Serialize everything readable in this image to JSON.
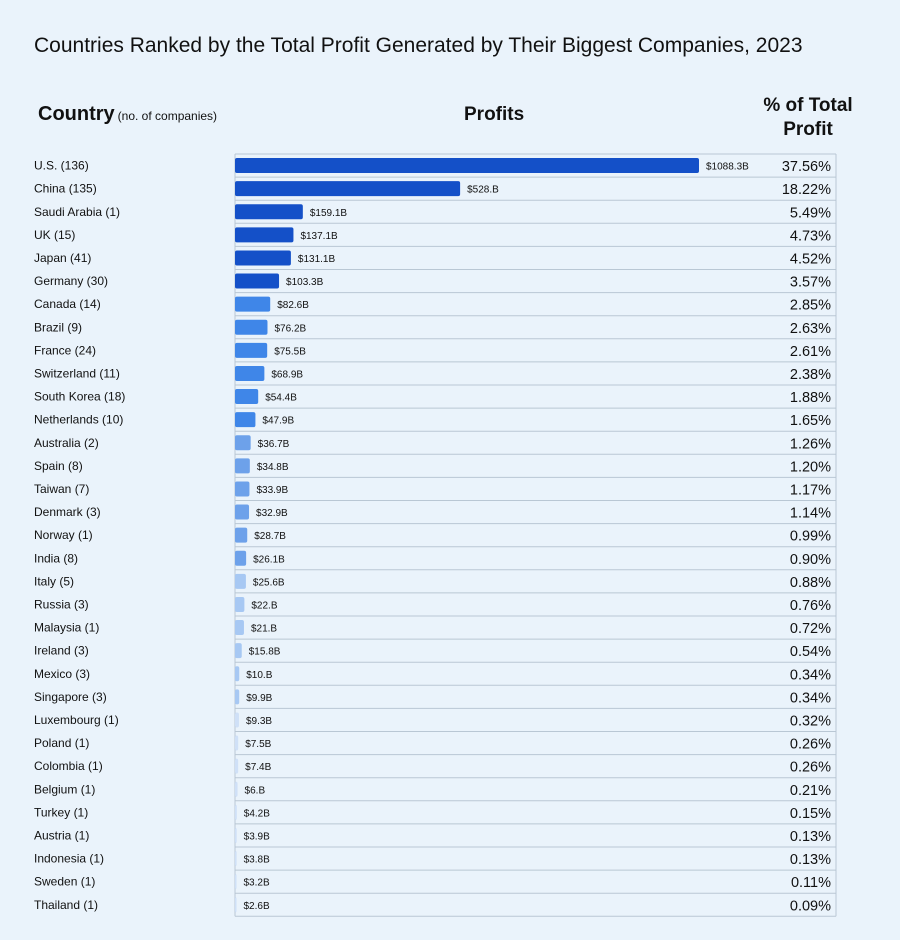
{
  "title": "Countries Ranked by the Total Profit Generated by Their Biggest Companies, 2023",
  "headers": {
    "country": "Country",
    "country_sub": "(no. of companies)",
    "profits": "Profits",
    "pct": "% of Total Profit"
  },
  "colors": {
    "tier1": "#1450c8",
    "tier2": "#3f86e8",
    "tier3": "#6da1ea",
    "tier4": "#a7c8f3",
    "tier5": "#cfe0f7",
    "grid": "#b9c7d4",
    "background": "#eaf3fb"
  },
  "chart_data": {
    "type": "bar",
    "orientation": "horizontal",
    "title": "Countries Ranked by the Total Profit Generated by Their Biggest Companies, 2023",
    "xlabel": "Profits",
    "ylabel": "Country (no. of companies)",
    "value_unit": "billion USD",
    "xlim": [
      0,
      1088.3
    ],
    "rows": [
      {
        "country": "U.S. (136)",
        "value": 1088.3,
        "label": "$1088.3B",
        "pct": "37.56%"
      },
      {
        "country": "China (135)",
        "value": 528,
        "label": "$528.B",
        "pct": "18.22%"
      },
      {
        "country": "Saudi Arabia (1)",
        "value": 159.1,
        "label": "$159.1B",
        "pct": "5.49%"
      },
      {
        "country": "UK (15)",
        "value": 137.1,
        "label": "$137.1B",
        "pct": "4.73%"
      },
      {
        "country": "Japan (41)",
        "value": 131.1,
        "label": "$131.1B",
        "pct": "4.52%"
      },
      {
        "country": "Germany (30)",
        "value": 103.3,
        "label": "$103.3B",
        "pct": "3.57%"
      },
      {
        "country": "Canada (14)",
        "value": 82.6,
        "label": "$82.6B",
        "pct": "2.85%"
      },
      {
        "country": "Brazil (9)",
        "value": 76.2,
        "label": "$76.2B",
        "pct": "2.63%"
      },
      {
        "country": "France (24)",
        "value": 75.5,
        "label": "$75.5B",
        "pct": "2.61%"
      },
      {
        "country": "Switzerland (11)",
        "value": 68.9,
        "label": "$68.9B",
        "pct": "2.38%"
      },
      {
        "country": "South Korea (18)",
        "value": 54.4,
        "label": "$54.4B",
        "pct": "1.88%"
      },
      {
        "country": "Netherlands (10)",
        "value": 47.9,
        "label": "$47.9B",
        "pct": "1.65%"
      },
      {
        "country": "Australia (2)",
        "value": 36.7,
        "label": "$36.7B",
        "pct": "1.26%"
      },
      {
        "country": "Spain (8)",
        "value": 34.8,
        "label": "$34.8B",
        "pct": "1.20%"
      },
      {
        "country": "Taiwan (7)",
        "value": 33.9,
        "label": "$33.9B",
        "pct": "1.17%"
      },
      {
        "country": "Denmark (3)",
        "value": 32.9,
        "label": "$32.9B",
        "pct": "1.14%"
      },
      {
        "country": "Norway (1)",
        "value": 28.7,
        "label": "$28.7B",
        "pct": "0.99%"
      },
      {
        "country": "India (8)",
        "value": 26.1,
        "label": "$26.1B",
        "pct": "0.90%"
      },
      {
        "country": "Italy (5)",
        "value": 25.6,
        "label": "$25.6B",
        "pct": "0.88%"
      },
      {
        "country": "Russia (3)",
        "value": 22,
        "label": "$22.B",
        "pct": "0.76%"
      },
      {
        "country": "Malaysia (1)",
        "value": 21,
        "label": "$21.B",
        "pct": "0.72%"
      },
      {
        "country": "Ireland (3)",
        "value": 15.8,
        "label": "$15.8B",
        "pct": "0.54%"
      },
      {
        "country": "Mexico (3)",
        "value": 10,
        "label": "$10.B",
        "pct": "0.34%"
      },
      {
        "country": "Singapore (3)",
        "value": 9.9,
        "label": "$9.9B",
        "pct": "0.34%"
      },
      {
        "country": "Luxembourg (1)",
        "value": 9.3,
        "label": "$9.3B",
        "pct": "0.32%"
      },
      {
        "country": "Poland (1)",
        "value": 7.5,
        "label": "$7.5B",
        "pct": "0.26%"
      },
      {
        "country": "Colombia (1)",
        "value": 7.4,
        "label": "$7.4B",
        "pct": "0.26%"
      },
      {
        "country": "Belgium (1)",
        "value": 6,
        "label": "$6.B",
        "pct": "0.21%"
      },
      {
        "country": "Turkey (1)",
        "value": 4.2,
        "label": "$4.2B",
        "pct": "0.15%"
      },
      {
        "country": "Austria (1)",
        "value": 3.9,
        "label": "$3.9B",
        "pct": "0.13%"
      },
      {
        "country": "Indonesia (1)",
        "value": 3.8,
        "label": "$3.8B",
        "pct": "0.13%"
      },
      {
        "country": "Sweden (1)",
        "value": 3.2,
        "label": "$3.2B",
        "pct": "0.11%"
      },
      {
        "country": "Thailand (1)",
        "value": 2.6,
        "label": "$2.6B",
        "pct": "0.09%"
      }
    ]
  }
}
